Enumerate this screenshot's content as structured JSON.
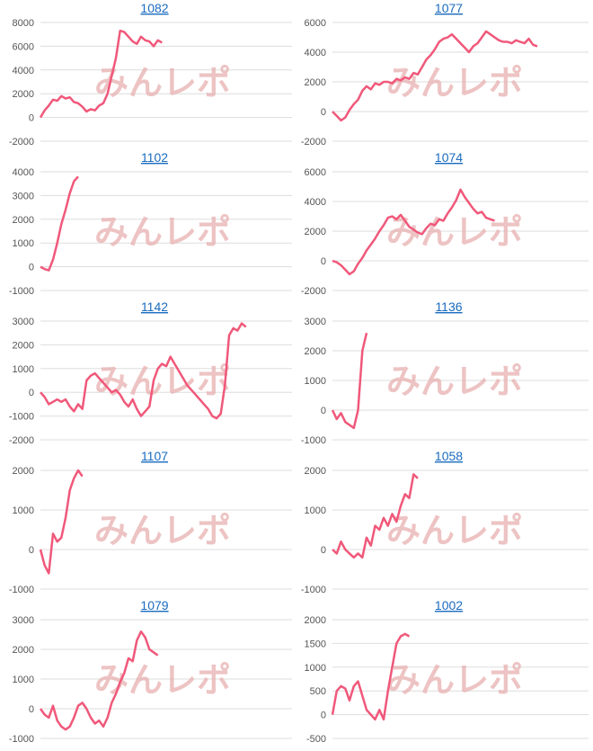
{
  "watermark": "みんレポ",
  "chart_data": [
    {
      "type": "line",
      "title": "1082",
      "color": "#f0587a",
      "xlim": [
        0,
        60
      ],
      "ylim": [
        -2000,
        8000
      ],
      "yticks": [
        -2000,
        0,
        2000,
        4000,
        6000,
        8000
      ],
      "values": [
        0,
        600,
        1000,
        1500,
        1400,
        1800,
        1600,
        1700,
        1300,
        1200,
        900,
        500,
        700,
        600,
        1000,
        1200,
        2000,
        3500,
        5000,
        7300,
        7200,
        6800,
        6400,
        6200,
        6800,
        6500,
        6400,
        6000,
        6500,
        6300
      ]
    },
    {
      "type": "line",
      "title": "1077",
      "color": "#f0587a",
      "xlim": [
        0,
        60
      ],
      "ylim": [
        -2000,
        6000
      ],
      "yticks": [
        -2000,
        0,
        2000,
        4000,
        6000
      ],
      "values": [
        0,
        -300,
        -600,
        -400,
        100,
        500,
        800,
        1400,
        1700,
        1500,
        1900,
        1800,
        2000,
        2000,
        1900,
        2200,
        2100,
        2300,
        2200,
        2600,
        2500,
        3000,
        3500,
        3800,
        4200,
        4700,
        4900,
        5000,
        5200,
        4900,
        4600,
        4300,
        4000,
        4400,
        4600,
        5000,
        5400,
        5200,
        5000,
        4800,
        4700,
        4700,
        4600,
        4800,
        4700,
        4600,
        4900,
        4500,
        4400
      ]
    },
    {
      "type": "line",
      "title": "1102",
      "color": "#f0587a",
      "xlim": [
        0,
        60
      ],
      "ylim": [
        -1000,
        4000
      ],
      "yticks": [
        -1000,
        0,
        1000,
        2000,
        3000,
        4000
      ],
      "values": [
        0,
        -100,
        -150,
        300,
        1000,
        1800,
        2400,
        3100,
        3600,
        3800
      ]
    },
    {
      "type": "line",
      "title": "1074",
      "color": "#f0587a",
      "xlim": [
        0,
        60
      ],
      "ylim": [
        -2000,
        6000
      ],
      "yticks": [
        -2000,
        0,
        2000,
        4000,
        6000
      ],
      "values": [
        0,
        -100,
        -300,
        -600,
        -900,
        -700,
        -200,
        200,
        700,
        1100,
        1500,
        2000,
        2400,
        2900,
        3000,
        2800,
        3100,
        2700,
        2300,
        2100,
        1900,
        1800,
        2200,
        2500,
        2400,
        2800,
        2700,
        3200,
        3600,
        4100,
        4800,
        4300,
        3900,
        3500,
        3200,
        3300,
        2900,
        2800,
        2700
      ]
    },
    {
      "type": "line",
      "title": "1142",
      "color": "#f0587a",
      "xlim": [
        0,
        60
      ],
      "ylim": [
        -2000,
        3000
      ],
      "yticks": [
        -2000,
        -1000,
        0,
        1000,
        2000,
        3000
      ],
      "values": [
        0,
        -200,
        -500,
        -400,
        -300,
        -400,
        -300,
        -600,
        -800,
        -500,
        -700,
        500,
        700,
        800,
        600,
        400,
        200,
        0,
        100,
        -100,
        -400,
        -600,
        -300,
        -700,
        -1000,
        -800,
        -600,
        500,
        1000,
        1200,
        1100,
        1500,
        1200,
        900,
        600,
        300,
        100,
        -100,
        -300,
        -500,
        -700,
        -1000,
        -1100,
        -900,
        300,
        2400,
        2700,
        2600,
        2900,
        2750
      ]
    },
    {
      "type": "line",
      "title": "1136",
      "color": "#f0587a",
      "xlim": [
        0,
        60
      ],
      "ylim": [
        -1000,
        3000
      ],
      "yticks": [
        -1000,
        0,
        1000,
        2000,
        3000
      ],
      "values": [
        0,
        -300,
        -100,
        -400,
        -500,
        -600,
        0,
        2000,
        2600
      ]
    },
    {
      "type": "line",
      "title": "1107",
      "color": "#f0587a",
      "xlim": [
        0,
        60
      ],
      "ylim": [
        -1000,
        2000
      ],
      "yticks": [
        -1000,
        0,
        1000,
        2000
      ],
      "values": [
        0,
        -400,
        -600,
        400,
        200,
        300,
        800,
        1500,
        1800,
        2000,
        1850
      ]
    },
    {
      "type": "line",
      "title": "1058",
      "color": "#f0587a",
      "xlim": [
        0,
        60
      ],
      "ylim": [
        -1000,
        2000
      ],
      "yticks": [
        -1000,
        0,
        1000,
        2000
      ],
      "values": [
        0,
        -100,
        200,
        0,
        -100,
        -200,
        -100,
        -200,
        300,
        100,
        600,
        500,
        800,
        600,
        900,
        700,
        1100,
        1400,
        1300,
        1900,
        1800
      ]
    },
    {
      "type": "line",
      "title": "1079",
      "color": "#f0587a",
      "xlim": [
        0,
        60
      ],
      "ylim": [
        -1000,
        3000
      ],
      "yticks": [
        -1000,
        0,
        1000,
        2000,
        3000
      ],
      "values": [
        0,
        -200,
        -300,
        100,
        -400,
        -600,
        -700,
        -600,
        -300,
        100,
        200,
        0,
        -300,
        -500,
        -400,
        -600,
        -300,
        200,
        500,
        900,
        1200,
        1700,
        1600,
        2300,
        2600,
        2400,
        2000,
        1900,
        1800
      ]
    },
    {
      "type": "line",
      "title": "1002",
      "color": "#f0587a",
      "xlim": [
        0,
        60
      ],
      "ylim": [
        -500,
        2000
      ],
      "yticks": [
        -500,
        0,
        500,
        1000,
        1500,
        2000
      ],
      "values": [
        0,
        500,
        600,
        550,
        300,
        600,
        700,
        400,
        100,
        0,
        -100,
        100,
        -100,
        500,
        1000,
        1500,
        1650,
        1700,
        1650
      ]
    }
  ]
}
